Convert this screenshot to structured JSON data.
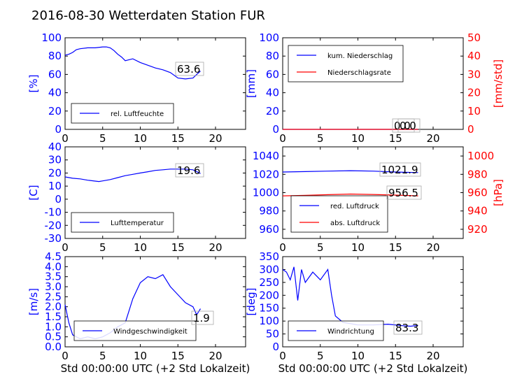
{
  "title": "2016-08-30 Wetterdaten Station FUR",
  "chart_data": [
    {
      "id": "humidity",
      "type": "line",
      "ylabel": "[%]",
      "xlim": [
        0,
        24
      ],
      "ylim": [
        0,
        100
      ],
      "xticks": [
        "0",
        "10",
        "20"
      ],
      "yticks": [
        "0",
        "20",
        "40",
        "60",
        "80",
        "100"
      ],
      "annotation": "63.6",
      "series": [
        {
          "name": "rel. Luftfeuchte",
          "color": "#0000ff",
          "x": [
            0,
            0.5,
            1,
            1.5,
            2,
            3,
            4,
            5,
            5.5,
            6,
            6.5,
            7,
            7.5,
            8,
            8.5,
            9,
            10,
            11,
            12,
            13,
            14,
            15,
            16,
            17,
            17.5,
            18
          ],
          "y": [
            81,
            82,
            84,
            87,
            88,
            89,
            89,
            90,
            90,
            89,
            86,
            82,
            79,
            75,
            76,
            77,
            73,
            70,
            67,
            65,
            62,
            56,
            55,
            56,
            60,
            63.6
          ]
        }
      ]
    },
    {
      "id": "precip",
      "type": "line",
      "ylabel": "[mm]",
      "ylabel2": "[mm/std]",
      "xlim": [
        0,
        24
      ],
      "ylim": [
        0,
        100
      ],
      "y2lim": [
        0,
        50
      ],
      "xticks": [
        "0",
        "10",
        "20"
      ],
      "yticks": [
        "0",
        "20",
        "40",
        "60",
        "80",
        "100"
      ],
      "y2ticks": [
        "0",
        "10",
        "20",
        "30",
        "40",
        "50"
      ],
      "annotation": "0.0",
      "annotation2": "0.0",
      "series": [
        {
          "name": "kum. Niederschlag",
          "color": "#0000ff",
          "x": [
            0,
            18
          ],
          "y": [
            0,
            0
          ]
        },
        {
          "name": "Niederschlagsrate",
          "color": "#ff0000",
          "x": [
            0,
            18
          ],
          "y": [
            0,
            0
          ]
        }
      ]
    },
    {
      "id": "temperature",
      "type": "line",
      "ylabel": "[C]",
      "xlim": [
        0,
        24
      ],
      "ylim": [
        -30,
        40
      ],
      "xticks": [
        "0",
        "10",
        "20"
      ],
      "yticks": [
        "-30",
        "-20",
        "-10",
        "0",
        "10",
        "20",
        "30",
        "40"
      ],
      "annotation": "19.6",
      "series": [
        {
          "name": "Lufttemperatur",
          "color": "#0000ff",
          "x": [
            0,
            1,
            2,
            3,
            4,
            4.5,
            5,
            6,
            7,
            8,
            9,
            10,
            11,
            12,
            13,
            14,
            15,
            16,
            17,
            18
          ],
          "y": [
            17,
            16,
            15.5,
            14.5,
            13.8,
            13.5,
            14,
            15,
            16.5,
            18,
            19,
            20,
            21,
            22,
            22.5,
            23,
            23,
            23,
            22.5,
            19.6
          ]
        }
      ]
    },
    {
      "id": "pressure",
      "type": "line",
      "ylabel2": "[hPa]",
      "xlim": [
        0,
        24
      ],
      "ylim": [
        950,
        1050
      ],
      "y2lim": [
        910,
        1010
      ],
      "xticks": [
        "0",
        "10",
        "20"
      ],
      "yticks": [
        "960",
        "980",
        "1000",
        "1020",
        "1040"
      ],
      "y2ticks": [
        "920",
        "940",
        "960",
        "980",
        "1000"
      ],
      "annotation": "1021.9",
      "annotation2": "956.5",
      "series": [
        {
          "name": "red. Luftdruck",
          "color": "#0000ff",
          "x": [
            0,
            3,
            6,
            9,
            12,
            15,
            18
          ],
          "y": [
            1022.5,
            1023,
            1023.5,
            1024,
            1023.5,
            1022.5,
            1021.9
          ]
        },
        {
          "name": "abs. Luftdruck",
          "color": "#ff0000",
          "axis": "right",
          "x": [
            0,
            3,
            6,
            9,
            12,
            15,
            18
          ],
          "y": [
            956.5,
            957,
            957.8,
            958.5,
            958,
            957.3,
            956.5
          ]
        }
      ]
    },
    {
      "id": "wind_speed",
      "type": "line",
      "ylabel": "[m/s]",
      "xlabel": "Std 00:00:00 UTC (+2 Std Lokalzeit)",
      "xlim": [
        0,
        24
      ],
      "ylim": [
        0,
        4.5
      ],
      "xticks": [
        "0",
        "10",
        "20"
      ],
      "yticks": [
        "0.0",
        "0.5",
        "1.0",
        "1.5",
        "2.0",
        "2.5",
        "3.0",
        "3.5",
        "4.0",
        "4.5"
      ],
      "annotation": "1.9",
      "series": [
        {
          "name": "Windgeschwindigkeit",
          "color": "#0000ff",
          "x": [
            0,
            0.5,
            1,
            2,
            3,
            4,
            5,
            6,
            7,
            8,
            8.5,
            9,
            10,
            11,
            12,
            13,
            14,
            15,
            16,
            17,
            17.5,
            18
          ],
          "y": [
            2.1,
            1.2,
            0.6,
            0.4,
            0.5,
            0.4,
            0.5,
            0.7,
            1.0,
            1.2,
            1.8,
            2.4,
            3.2,
            3.5,
            3.4,
            3.6,
            3.0,
            2.6,
            2.2,
            2.0,
            1.6,
            1.9
          ]
        }
      ]
    },
    {
      "id": "wind_dir",
      "type": "line",
      "ylabel": "[deg]",
      "xlabel": "Std 00:00:00 UTC (+2 Std Lokalzeit)",
      "xlim": [
        0,
        24
      ],
      "ylim": [
        0,
        350
      ],
      "xticks": [
        "0",
        "10",
        "20"
      ],
      "yticks": [
        "0",
        "50",
        "100",
        "150",
        "200",
        "250",
        "300",
        "350"
      ],
      "annotation": "83.3",
      "series": [
        {
          "name": "Windrichtung",
          "color": "#0000ff",
          "x": [
            0,
            0.5,
            1,
            1.5,
            2,
            2.5,
            3,
            4,
            5,
            6,
            6.5,
            7,
            8,
            9,
            10,
            12,
            14,
            16,
            17,
            18
          ],
          "y": [
            300,
            290,
            260,
            310,
            180,
            300,
            250,
            290,
            260,
            300,
            200,
            120,
            95,
            90,
            85,
            85,
            88,
            82,
            80,
            83.3
          ]
        }
      ]
    }
  ]
}
